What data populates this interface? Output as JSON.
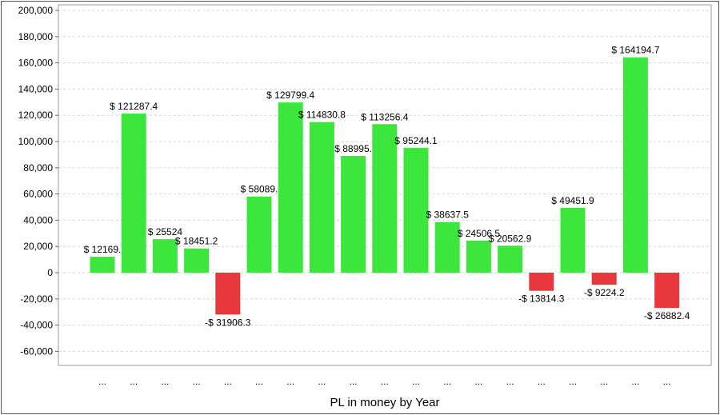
{
  "chart_data": {
    "type": "bar",
    "title": "",
    "xlabel": "PL in money by Year",
    "ylabel": "",
    "ylim": [
      -60000,
      200000
    ],
    "yticks": [
      200000,
      180000,
      160000,
      140000,
      120000,
      100000,
      80000,
      60000,
      40000,
      20000,
      0,
      -20000,
      -40000,
      -60000
    ],
    "ytick_labels": [
      "200,000",
      "180,000",
      "160,000",
      "140,000",
      "120,000",
      "100,000",
      "80,000",
      "60,000",
      "40,000",
      "20,000",
      "0",
      "-20,000",
      "-40,000",
      "-60,000"
    ],
    "grid": true,
    "legend": "none",
    "positive_color": "#3de63d",
    "negative_color": "#e8383d",
    "categories": [
      "...",
      "...",
      "...",
      "...",
      "...",
      "...",
      "...",
      "...",
      "...",
      "...",
      "...",
      "...",
      "...",
      "...",
      "...",
      "...",
      "...",
      "...",
      "..."
    ],
    "values": [
      12169,
      121287.4,
      25524,
      18451.2,
      -31906.3,
      58089,
      129799.4,
      114830.8,
      88995,
      113256.4,
      95244.1,
      38637.5,
      24506.5,
      20562.9,
      -13814.3,
      49451.9,
      -9224.2,
      164194.7,
      -26882.4
    ],
    "data_labels": [
      "$ 12169.",
      "$ 121287.4",
      "$ 25524",
      "$ 18451.2",
      "-$ 31906.3",
      "$ 58089.",
      "$ 129799.4",
      "$ 114830.8",
      "$ 88995.",
      "$ 113256.4",
      "$ 95244.1",
      "$ 38637.5",
      "$ 24506.5",
      "$ 20562.9",
      "-$ 13814.3",
      "$ 49451.9",
      "-$ 9224.2",
      "$ 164194.7",
      "-$ 26882.4"
    ]
  }
}
